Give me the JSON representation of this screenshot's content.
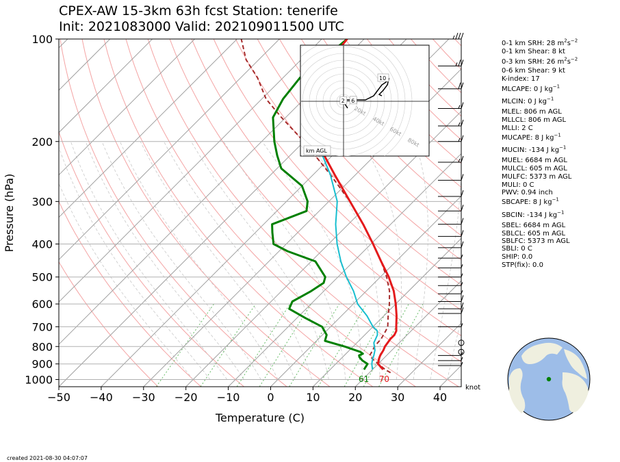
{
  "title_line1": "CPEX-AW 15-3km  63h fcst  Station: tenerife",
  "title_line2": "Init: 2021083000  Valid: 2021090115 00 UTC",
  "indices": [
    {
      "pre": "0-1 km SRH: 28 m",
      "sup1": "2",
      "mid": "s",
      "sup2": "−2"
    },
    {
      "text": "0-1 km Shear: 8 kt"
    },
    {
      "pre": "0-3 km SRH: 26 m",
      "sup1": "2",
      "mid": "s",
      "sup2": "−2"
    },
    {
      "text": "0-6 km Shear: 9 kt"
    },
    {
      "text": "K-index: 17"
    },
    {
      "pre": "MLCAPE: 0 J kg",
      "sup1": "−1"
    },
    {
      "pre": "MLCIN: 0 J kg",
      "sup1": "−1"
    },
    {
      "text": "MLEL: 806 m AGL"
    },
    {
      "text": "MLLCL: 806 m AGL"
    },
    {
      "text": "MLLI: 2 C"
    },
    {
      "pre": "MUCAPE: 8 J kg",
      "sup1": "−1"
    },
    {
      "pre": "MUCIN: -134 J kg",
      "sup1": "−1"
    },
    {
      "text": "MUEL: 6684 m AGL"
    },
    {
      "text": "MULCL: 605 m AGL"
    },
    {
      "text": "MULFC: 5373 m AGL"
    },
    {
      "text": "MULI: 0 C"
    },
    {
      "text": "PWV: 0.94 inch"
    },
    {
      "pre": "SBCAPE: 8 J kg",
      "sup1": "−1"
    },
    {
      "pre": "SBCIN: -134 J kg",
      "sup1": "−1"
    },
    {
      "text": "SBEL: 6684 m AGL"
    },
    {
      "text": "SBLCL: 605 m AGL"
    },
    {
      "text": "SBLFC: 5373 m AGL"
    },
    {
      "text": "SBLI: 0 C"
    },
    {
      "text": "SHIP: 0.0"
    },
    {
      "text": "STP(fix): 0.0"
    }
  ],
  "created": "created 2021-08-30 04:07:07",
  "colors": {
    "temperature": "#e41a1c",
    "dewpoint": "#008000",
    "wetbulb": "#17becf",
    "parcel": "#a52a2a",
    "isobar": "#b0b0b0",
    "isotherm": "#a0a0a0",
    "dry_adiabat": "#f4a3a3",
    "moist_adiabat": "#c8c8c8",
    "mixing_ratio": "#66bb66",
    "ocean": "#9dbde8",
    "land": "#efefdf"
  },
  "chart_data": {
    "type": "skew-t",
    "xlabel": "Temperature (C)",
    "ylabel": "Pressure (hPa)",
    "xlim": [
      -50,
      45
    ],
    "ylim": [
      1050,
      100
    ],
    "xticks": [
      -50,
      -40,
      -30,
      -20,
      -10,
      0,
      10,
      20,
      30,
      40
    ],
    "xtick_labels": [
      "−50",
      "−40",
      "−30",
      "−20",
      "−10",
      "0",
      "10",
      "20",
      "30",
      "40"
    ],
    "yticks": [
      100,
      200,
      300,
      400,
      500,
      600,
      700,
      800,
      900,
      1000
    ],
    "surface_temp_label": "70",
    "surface_dewpoint_label": "61",
    "wind_unit": "knot",
    "series": [
      {
        "key": "temperature",
        "pressure": [
          935,
          900,
          870,
          850,
          820,
          800,
          760,
          740,
          720,
          700,
          650,
          600,
          550,
          500,
          450,
          400,
          350,
          300,
          250,
          200,
          170,
          150,
          130,
          115,
          100
        ],
        "values": [
          22.5,
          20.0,
          19.0,
          18.5,
          18.0,
          17.5,
          17.0,
          17.0,
          16.5,
          15.5,
          13.0,
          10.0,
          6.5,
          2.0,
          -3.5,
          -9.5,
          -16.5,
          -25.0,
          -35.0,
          -47.0,
          -55.0,
          -59.0,
          -62.0,
          -63.0,
          -64.0
        ]
      },
      {
        "key": "dewpoint",
        "pressure": [
          935,
          900,
          880,
          860,
          850,
          840,
          830,
          800,
          770,
          740,
          700,
          660,
          620,
          590,
          550,
          520,
          500,
          450,
          420,
          400,
          370,
          350,
          320,
          300,
          270,
          240,
          220,
          200,
          170,
          150,
          130,
          115,
          100
        ],
        "values": [
          18.0,
          17.5,
          15.5,
          14.0,
          13.5,
          14.0,
          13.0,
          8.0,
          2.0,
          1.0,
          -2.0,
          -8.0,
          -14.0,
          -15.0,
          -13.0,
          -12.0,
          -13.0,
          -19.0,
          -28.0,
          -33.0,
          -36.0,
          -38.0,
          -33.0,
          -35.0,
          -40.0,
          -49.0,
          -53.0,
          -57.0,
          -63.0,
          -65.0,
          -66.0,
          -65.0,
          -64.0
        ]
      },
      {
        "key": "wetbulb",
        "pressure": [
          935,
          900,
          870,
          850,
          820,
          800,
          780,
          760,
          740,
          720,
          700,
          650,
          600,
          550,
          500,
          450,
          400,
          350,
          300,
          250,
          200,
          170,
          150,
          130,
          115,
          100
        ],
        "values": [
          20.0,
          18.5,
          17.5,
          17.0,
          16.0,
          15.0,
          14.0,
          13.5,
          13.0,
          12.0,
          10.0,
          6.0,
          1.0,
          -3.0,
          -8.0,
          -13.0,
          -18.0,
          -23.0,
          -28.0,
          -36.0,
          -47.0,
          -55.0,
          -60.0,
          -63.0,
          -64.0,
          -64.0
        ]
      },
      {
        "key": "parcel",
        "pressure": [
          955,
          935,
          900,
          870,
          850,
          820,
          800,
          760,
          720,
          700,
          650,
          600,
          550,
          500,
          450,
          400,
          350,
          300,
          250,
          200,
          170,
          150,
          130,
          115,
          100
        ],
        "values": [
          25.0,
          23.0,
          20.0,
          17.5,
          16.0,
          15.5,
          15.0,
          14.8,
          14.0,
          13.5,
          11.0,
          8.5,
          5.5,
          1.5,
          -3.5,
          -9.5,
          -16.5,
          -25.0,
          -36.0,
          -50.0,
          -61.0,
          -69.0,
          -76.0,
          -83.0,
          -89.0
        ]
      }
    ],
    "wind_barbs": [
      {
        "p": 100,
        "spd": 35
      },
      {
        "p": 120,
        "spd": 25
      },
      {
        "p": 140,
        "spd": 20
      },
      {
        "p": 160,
        "spd": 15
      },
      {
        "p": 180,
        "spd": 15
      },
      {
        "p": 200,
        "spd": 15
      },
      {
        "p": 230,
        "spd": 15
      },
      {
        "p": 260,
        "spd": 10
      },
      {
        "p": 290,
        "spd": 10
      },
      {
        "p": 320,
        "spd": 10
      },
      {
        "p": 350,
        "spd": 10
      },
      {
        "p": 380,
        "spd": 10
      },
      {
        "p": 410,
        "spd": 10
      },
      {
        "p": 440,
        "spd": 5
      },
      {
        "p": 470,
        "spd": 5
      },
      {
        "p": 500,
        "spd": 5
      },
      {
        "p": 530,
        "spd": 5
      },
      {
        "p": 560,
        "spd": 5
      },
      {
        "p": 590,
        "spd": 10
      },
      {
        "p": 620,
        "spd": 10
      },
      {
        "p": 640,
        "spd": 10
      },
      {
        "p": 700,
        "spd": 5
      },
      {
        "p": 780,
        "spd": 0
      },
      {
        "p": 830,
        "spd": 0
      },
      {
        "p": 850,
        "spd": 5
      },
      {
        "p": 880,
        "spd": 5
      },
      {
        "p": 910,
        "spd": 5
      }
    ],
    "hodograph": {
      "label": "km AGL",
      "ring_labels": [
        "20kt",
        "40kt",
        "60kt",
        "80kt"
      ],
      "height_labels": [
        {
          "t": "2",
          "u": -0.3,
          "v": 0.2
        },
        {
          "t": "6",
          "u": 3.3,
          "v": 0.3
        },
        {
          "t": "10",
          "u": 13.5,
          "v": 8.5
        }
      ],
      "u": [
        1.5,
        0.5,
        0.0,
        1.5,
        4.0,
        8.0,
        11.0,
        12.5,
        14.0,
        15.5,
        16.0,
        16.5,
        16.0,
        14.5,
        13.0,
        14.0
      ],
      "v": [
        -2.5,
        -1.0,
        0.5,
        0.5,
        0.5,
        0.5,
        2.0,
        4.0,
        6.0,
        7.0,
        7.5,
        8.0,
        6.0,
        4.0,
        2.5,
        2.0
      ]
    }
  }
}
